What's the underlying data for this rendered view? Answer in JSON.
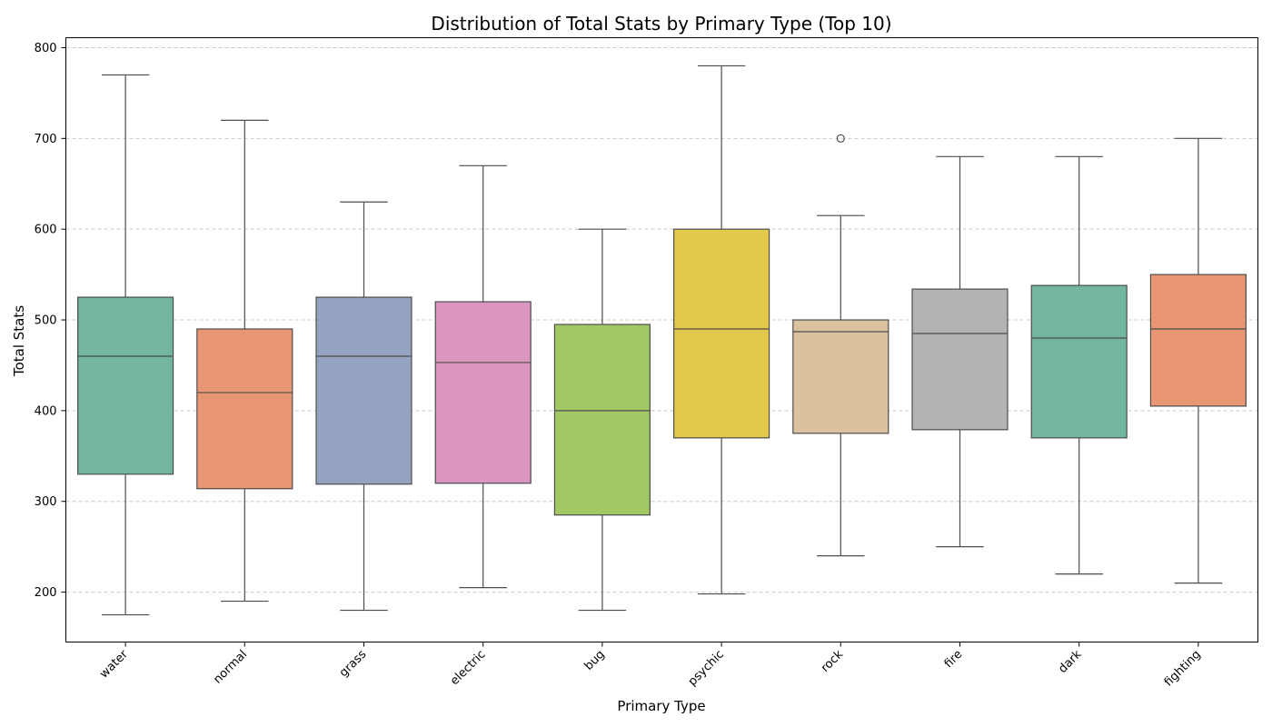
{
  "chart_data": {
    "type": "box",
    "title": "Distribution of Total Stats by Primary Type (Top 10)",
    "xlabel": "Primary Type",
    "ylabel": "Total Stats",
    "ylim": [
      145,
      811
    ],
    "yticks": [
      200,
      300,
      400,
      500,
      600,
      700,
      800
    ],
    "grid": "y-dashed",
    "categories": [
      "water",
      "normal",
      "grass",
      "electric",
      "bug",
      "psychic",
      "rock",
      "fire",
      "dark",
      "fighting"
    ],
    "boxes": [
      {
        "category": "water",
        "min": 175,
        "q1": 330,
        "median": 460,
        "q3": 525,
        "max": 770,
        "outliers": [],
        "color": "#72b6a1"
      },
      {
        "category": "normal",
        "min": 190,
        "q1": 314,
        "median": 420,
        "q3": 490,
        "max": 720,
        "outliers": [],
        "color": "#e99675"
      },
      {
        "category": "grass",
        "min": 180,
        "q1": 319,
        "median": 460,
        "q3": 525,
        "max": 630,
        "outliers": [],
        "color": "#95a3c3"
      },
      {
        "category": "electric",
        "min": 205,
        "q1": 320,
        "median": 453,
        "q3": 520,
        "max": 670,
        "outliers": [],
        "color": "#db96c0"
      },
      {
        "category": "bug",
        "min": 180,
        "q1": 285,
        "median": 400,
        "q3": 495,
        "max": 600,
        "outliers": [],
        "color": "#a2c865"
      },
      {
        "category": "psychic",
        "min": 198,
        "q1": 370,
        "median": 490,
        "q3": 600,
        "max": 780,
        "outliers": [],
        "color": "#e3c94a"
      },
      {
        "category": "rock",
        "min": 240,
        "q1": 375,
        "median": 487,
        "q3": 500,
        "max": 615,
        "outliers": [
          700
        ],
        "color": "#dac29e"
      },
      {
        "category": "fire",
        "min": 250,
        "q1": 379,
        "median": 485,
        "q3": 534,
        "max": 680,
        "outliers": [],
        "color": "#b3b3b3"
      },
      {
        "category": "dark",
        "min": 220,
        "q1": 370,
        "median": 480,
        "q3": 538,
        "max": 680,
        "outliers": [],
        "color": "#72b6a1"
      },
      {
        "category": "fighting",
        "min": 210,
        "q1": 405,
        "median": 490,
        "q3": 550,
        "max": 700,
        "outliers": [],
        "color": "#e99675"
      }
    ]
  }
}
